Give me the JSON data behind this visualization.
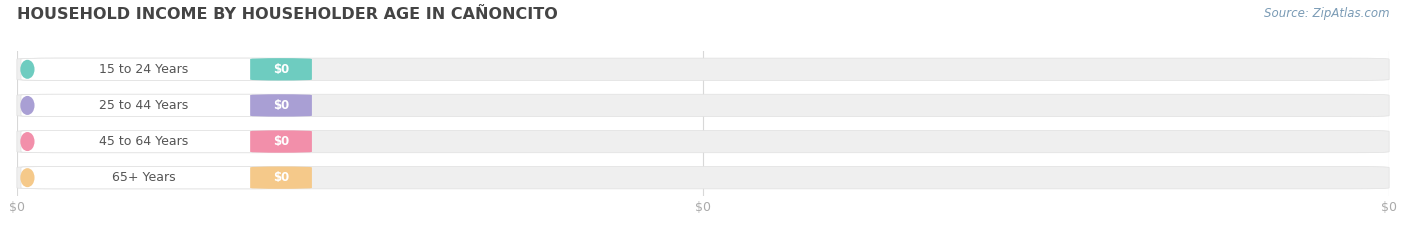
{
  "title": "HOUSEHOLD INCOME BY HOUSEHOLDER AGE IN CAÑONCITO",
  "source": "Source: ZipAtlas.com",
  "categories": [
    "15 to 24 Years",
    "25 to 44 Years",
    "45 to 64 Years",
    "65+ Years"
  ],
  "values": [
    0,
    0,
    0,
    0
  ],
  "bar_colors": [
    "#6eccc0",
    "#a99fd4",
    "#f28faa",
    "#f5c98a"
  ],
  "bar_bg_color": "#efefef",
  "label_bg_color": "#ffffff",
  "background_color": "#ffffff",
  "grid_color": "#d8d8d8",
  "text_color": "#555555",
  "value_text_color": "#ffffff",
  "tick_color": "#aaaaaa",
  "title_color": "#444444",
  "source_color": "#7a9bb5",
  "xtick_labels": [
    "$0",
    "$0",
    "$0"
  ],
  "xtick_positions": [
    0.0,
    0.5,
    1.0
  ]
}
